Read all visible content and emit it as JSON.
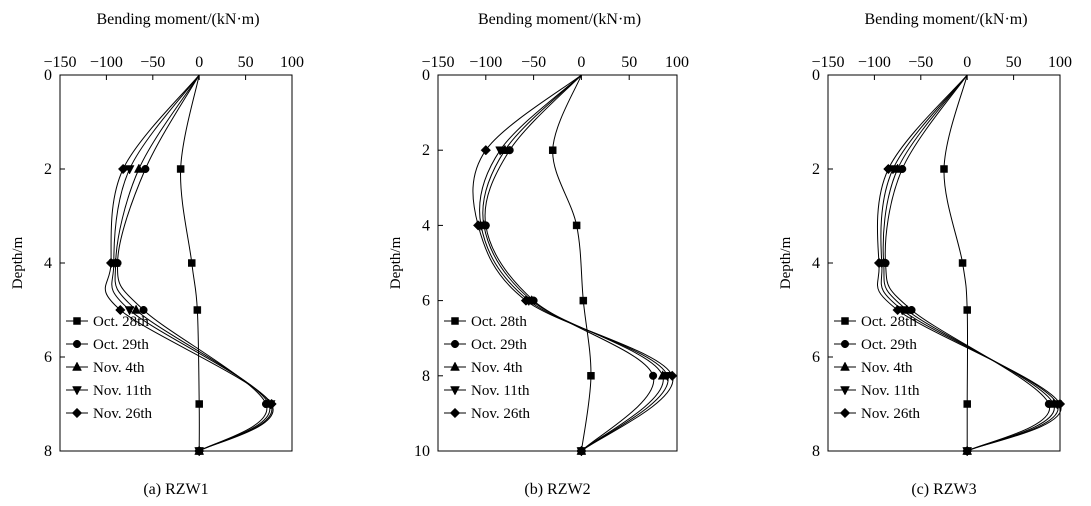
{
  "chart_data": [
    {
      "type": "line",
      "caption": "(a) RZW1",
      "xlabel": "Bending moment/(kN·m)",
      "ylabel": "Depth/m",
      "xlim": [
        -150,
        100
      ],
      "ylim": [
        0,
        8
      ],
      "y_inverted": true,
      "x_axis_position": "top",
      "xticks": [
        "-150",
        "-100",
        "-50",
        "0",
        "50",
        "100"
      ],
      "yticks": [
        "0",
        "2",
        "4",
        "6",
        "8"
      ],
      "legend_position": "bottom-left",
      "series": [
        {
          "name": "Oct. 28th",
          "marker": "square",
          "depth": [
            0,
            2,
            4,
            5,
            7,
            8
          ],
          "moment": [
            0,
            -20,
            -8,
            -2,
            0,
            0
          ]
        },
        {
          "name": "Oct. 29th",
          "marker": "circle",
          "depth": [
            0,
            2,
            4,
            5,
            7,
            8
          ],
          "moment": [
            0,
            -58,
            -88,
            -60,
            72,
            0
          ]
        },
        {
          "name": "Nov. 4th",
          "marker": "triangle-up",
          "depth": [
            0,
            2,
            4,
            5,
            7,
            8
          ],
          "moment": [
            0,
            -65,
            -90,
            -68,
            75,
            0
          ]
        },
        {
          "name": "Nov. 11th",
          "marker": "triangle-down",
          "depth": [
            0,
            2,
            4,
            5,
            7,
            8
          ],
          "moment": [
            0,
            -75,
            -92,
            -75,
            77,
            0
          ]
        },
        {
          "name": "Nov. 26th",
          "marker": "diamond",
          "depth": [
            0,
            2,
            4,
            5,
            7,
            8
          ],
          "moment": [
            0,
            -82,
            -95,
            -85,
            78,
            0
          ]
        }
      ]
    },
    {
      "type": "line",
      "caption": "(b) RZW2",
      "xlabel": "Bending moment/(kN·m)",
      "ylabel": "Depth/m",
      "xlim": [
        -150,
        100
      ],
      "ylim": [
        0,
        10
      ],
      "y_inverted": true,
      "x_axis_position": "top",
      "xticks": [
        "-150",
        "-100",
        "-50",
        "0",
        "50",
        "100"
      ],
      "yticks": [
        "0",
        "2",
        "4",
        "6",
        "8",
        "10"
      ],
      "legend_position": "bottom-left",
      "series": [
        {
          "name": "Oct. 28th",
          "marker": "square",
          "depth": [
            0,
            2,
            4,
            6,
            8,
            10
          ],
          "moment": [
            0,
            -30,
            -5,
            2,
            10,
            0
          ]
        },
        {
          "name": "Oct. 29th",
          "marker": "circle",
          "depth": [
            0,
            2,
            4,
            6,
            8,
            10
          ],
          "moment": [
            0,
            -75,
            -100,
            -50,
            75,
            0
          ]
        },
        {
          "name": "Nov. 4th",
          "marker": "triangle-up",
          "depth": [
            0,
            2,
            4,
            6,
            8,
            10
          ],
          "moment": [
            0,
            -80,
            -102,
            -52,
            85,
            0
          ]
        },
        {
          "name": "Nov. 11th",
          "marker": "triangle-down",
          "depth": [
            0,
            2,
            4,
            6,
            8,
            10
          ],
          "moment": [
            0,
            -85,
            -105,
            -55,
            90,
            0
          ]
        },
        {
          "name": "Nov. 26th",
          "marker": "diamond",
          "depth": [
            0,
            2,
            4,
            6,
            8,
            10
          ],
          "moment": [
            0,
            -100,
            -108,
            -58,
            95,
            0
          ]
        }
      ]
    },
    {
      "type": "line",
      "caption": "(c) RZW3",
      "xlabel": "Bending moment/(kN·m)",
      "ylabel": "Depth/m",
      "xlim": [
        -150,
        100
      ],
      "ylim": [
        0,
        8
      ],
      "y_inverted": true,
      "x_axis_position": "top",
      "xticks": [
        "-150",
        "-100",
        "-50",
        "0",
        "50",
        "100"
      ],
      "yticks": [
        "0",
        "2",
        "4",
        "6",
        "8"
      ],
      "legend_position": "bottom-left",
      "series": [
        {
          "name": "Oct. 28th",
          "marker": "square",
          "depth": [
            0,
            2,
            4,
            5,
            7,
            8
          ],
          "moment": [
            0,
            -25,
            -5,
            0,
            0,
            0
          ]
        },
        {
          "name": "Oct. 29th",
          "marker": "circle",
          "depth": [
            0,
            2,
            4,
            5,
            7,
            8
          ],
          "moment": [
            0,
            -70,
            -88,
            -60,
            88,
            0
          ]
        },
        {
          "name": "Nov. 4th",
          "marker": "triangle-up",
          "depth": [
            0,
            2,
            4,
            5,
            7,
            8
          ],
          "moment": [
            0,
            -75,
            -90,
            -65,
            93,
            0
          ]
        },
        {
          "name": "Nov. 11th",
          "marker": "triangle-down",
          "depth": [
            0,
            2,
            4,
            5,
            7,
            8
          ],
          "moment": [
            0,
            -80,
            -92,
            -70,
            97,
            0
          ]
        },
        {
          "name": "Nov. 26th",
          "marker": "diamond",
          "depth": [
            0,
            2,
            4,
            5,
            7,
            8
          ],
          "moment": [
            0,
            -85,
            -95,
            -75,
            100,
            0
          ]
        }
      ]
    }
  ]
}
